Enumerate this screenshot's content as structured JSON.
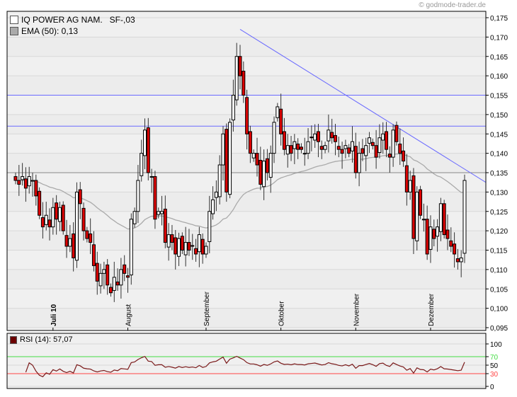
{
  "watermark": "© godmode-trader.de",
  "legend": {
    "instrument": "IQ POWER AG NAM.   SF-,03",
    "ema": "EMA (50): 0,13",
    "rsi": "RSI (14): 57,07"
  },
  "colors": {
    "up": "#ffffff",
    "down": "#dd0000",
    "ema": "#aaaaaa",
    "trend": "#6a6aff",
    "rsi": "#7a1a1a",
    "rsi_high": "#44dd44",
    "rsi_low": "#ff4444"
  },
  "chart_data": [
    {
      "type": "candlestick",
      "title": "IQ POWER AG NAM.   SF-,03",
      "ylim": [
        0.095,
        0.175
      ],
      "yticks": [
        "0,095",
        "0,100",
        "0,105",
        "0,110",
        "0,115",
        "0,120",
        "0,125",
        "0,130",
        "0,135",
        "0,140",
        "0,145",
        "0,150",
        "0,155",
        "0,160",
        "0,165",
        "0,170",
        "0,175"
      ],
      "months": [
        {
          "label": "Juli 10",
          "index": 11
        },
        {
          "label": "August",
          "index": 33
        },
        {
          "label": "September",
          "index": 56
        },
        {
          "label": "Oktober",
          "index": 78
        },
        {
          "label": "November",
          "index": 100
        },
        {
          "label": "Dezember",
          "index": 122
        }
      ],
      "close": [
        0.133,
        0.132,
        0.134,
        0.131,
        0.134,
        0.133,
        0.129,
        0.124,
        0.121,
        0.124,
        0.121,
        0.126,
        0.123,
        0.126,
        0.12,
        0.116,
        0.118,
        0.113,
        0.13,
        0.127,
        0.12,
        0.118,
        0.117,
        0.111,
        0.107,
        0.109,
        0.11,
        0.106,
        0.104,
        0.108,
        0.106,
        0.11,
        0.109,
        0.108,
        0.123,
        0.125,
        0.133,
        0.14,
        0.146,
        0.135,
        0.134,
        0.123,
        0.125,
        0.125,
        0.117,
        0.119,
        0.117,
        0.114,
        0.118,
        0.115,
        0.117,
        0.115,
        0.116,
        0.114,
        0.119,
        0.114,
        0.116,
        0.125,
        0.128,
        0.13,
        0.137,
        0.145,
        0.13,
        0.148,
        0.155,
        0.165,
        0.16,
        0.155,
        0.145,
        0.14,
        0.14,
        0.137,
        0.132,
        0.138,
        0.135,
        0.14,
        0.148,
        0.152,
        0.145,
        0.141,
        0.142,
        0.14,
        0.143,
        0.141,
        0.141,
        0.14,
        0.143,
        0.144,
        0.145,
        0.143,
        0.141,
        0.142,
        0.146,
        0.144,
        0.143,
        0.141,
        0.14,
        0.142,
        0.14,
        0.143,
        0.135,
        0.14,
        0.14,
        0.142,
        0.144,
        0.142,
        0.139,
        0.144,
        0.145,
        0.141,
        0.139,
        0.146,
        0.143,
        0.14,
        0.138,
        0.13,
        0.133,
        0.118,
        0.13,
        0.124,
        0.123,
        0.114,
        0.121,
        0.118,
        0.121,
        0.127,
        0.119,
        0.118,
        0.116,
        0.114,
        0.112,
        0.113,
        0.133
      ],
      "ema_period": 50,
      "hlines": [
        0.155,
        0.147,
        0.135
      ],
      "trendline": {
        "start": {
          "index": 66,
          "price": 0.172
        },
        "end_price": 0.1325
      },
      "legend_position": "top-left"
    },
    {
      "type": "line",
      "name": "RSI (14)",
      "ylim": [
        0,
        100
      ],
      "yticks": [
        "0",
        "30",
        "50",
        "70",
        "100"
      ],
      "levels": [
        30,
        70
      ],
      "last": 57.07
    }
  ]
}
